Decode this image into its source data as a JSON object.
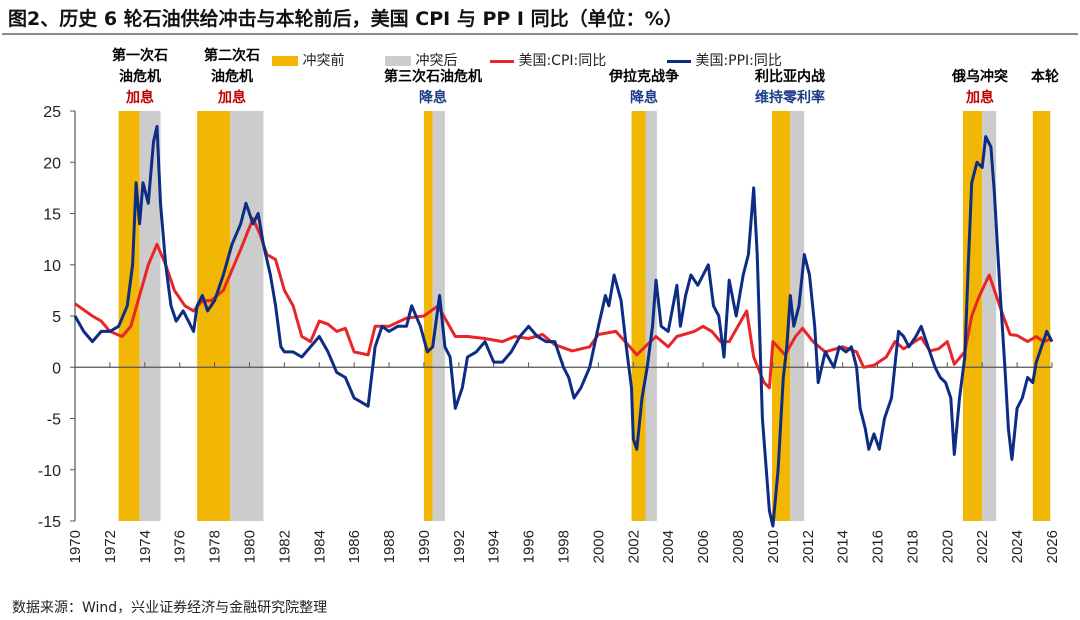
{
  "title": "图2、历史 6 轮石油供给冲击与本轮前后，美国 CPI 与 PP I 同比（单位：%）",
  "source": "数据来源：Wind，兴业证券经济与金融研究院整理",
  "colors": {
    "before": "#F2B705",
    "after": "#CCCCCC",
    "cpi": "#E8262A",
    "ppi": "#0D2C84",
    "hike": "#C00000",
    "cut": "#1F3C88"
  },
  "annotations": [
    {
      "name": "第一次石油危机",
      "line1": "第一次石",
      "line2": "油危机",
      "policy": "加息",
      "policy_type": "hike"
    },
    {
      "name": "第二次石油危机",
      "line1": "第二次石",
      "line2": "油危机",
      "policy": "加息",
      "policy_type": "hike"
    },
    {
      "name": "第三次石油危机",
      "line1": "",
      "line2": "第三次石油危机",
      "policy": "降息",
      "policy_type": "cut"
    },
    {
      "name": "伊拉克战争",
      "line1": "",
      "line2": "伊拉克战争",
      "policy": "降息",
      "policy_type": "cut"
    },
    {
      "name": "利比亚内战",
      "line1": "",
      "line2": "利比亚内战",
      "policy": "维持零利率",
      "policy_type": "cut"
    },
    {
      "name": "俄乌冲突",
      "line1": "",
      "line2": "俄乌冲突",
      "policy": "加息",
      "policy_type": "hike"
    },
    {
      "name": "本轮",
      "line1": "",
      "line2": "本轮",
      "policy": "",
      "policy_type": ""
    }
  ],
  "chart_data": {
    "type": "line",
    "title": "",
    "xlabel": "",
    "ylabel": "",
    "xlim": [
      1970,
      2026
    ],
    "ylim": [
      -15,
      25
    ],
    "yticks": [
      -15,
      -10,
      -5,
      0,
      5,
      10,
      15,
      20,
      25
    ],
    "xticks": [
      1970,
      1972,
      1974,
      1976,
      1978,
      1980,
      1982,
      1984,
      1986,
      1988,
      1990,
      1992,
      1994,
      1996,
      1998,
      2000,
      2002,
      2004,
      2006,
      2008,
      2010,
      2012,
      2014,
      2016,
      2018,
      2020,
      2022,
      2024,
      2026
    ],
    "grid": false,
    "legend_position": "top",
    "legend": [
      "冲突前",
      "冲突后",
      "美国:CPI:同比",
      "美国:PPI:同比"
    ],
    "shaded_periods": [
      {
        "before": [
          1972.5,
          1973.7
        ],
        "after": [
          1973.7,
          1974.9
        ]
      },
      {
        "before": [
          1977.0,
          1978.9
        ],
        "after": [
          1978.9,
          1980.8
        ]
      },
      {
        "before": [
          1990.0,
          1990.5
        ],
        "after": [
          1990.5,
          1991.2
        ]
      },
      {
        "before": [
          2001.9,
          2002.7
        ],
        "after": [
          2002.7,
          2003.35
        ]
      },
      {
        "before": [
          2009.95,
          2011.0
        ],
        "after": [
          2011.0,
          2011.8
        ]
      },
      {
        "before": [
          2020.9,
          2022.0
        ],
        "after": [
          2022.0,
          2022.8
        ]
      },
      {
        "before": [
          2024.9,
          2025.9
        ],
        "after": null
      }
    ],
    "series": [
      {
        "name": "美国:CPI:同比",
        "points": [
          [
            1970,
            6.2
          ],
          [
            1971,
            5
          ],
          [
            1971.5,
            4.5
          ],
          [
            1972,
            3.5
          ],
          [
            1972.7,
            3
          ],
          [
            1973.2,
            4
          ],
          [
            1973.7,
            7
          ],
          [
            1974.2,
            10
          ],
          [
            1974.7,
            12
          ],
          [
            1975.2,
            10
          ],
          [
            1975.7,
            7.5
          ],
          [
            1976.3,
            6
          ],
          [
            1976.8,
            5.5
          ],
          [
            1977.3,
            6.5
          ],
          [
            1977.8,
            6.5
          ],
          [
            1978.5,
            7.5
          ],
          [
            1979,
            9.5
          ],
          [
            1979.5,
            11.5
          ],
          [
            1980.2,
            14.5
          ],
          [
            1980.6,
            13
          ],
          [
            1981,
            11
          ],
          [
            1981.5,
            10.5
          ],
          [
            1982,
            7.5
          ],
          [
            1982.5,
            6
          ],
          [
            1983,
            3
          ],
          [
            1983.5,
            2.5
          ],
          [
            1984,
            4.5
          ],
          [
            1984.5,
            4.2
          ],
          [
            1985,
            3.5
          ],
          [
            1985.5,
            3.8
          ],
          [
            1986,
            1.5
          ],
          [
            1986.8,
            1.2
          ],
          [
            1987.2,
            4
          ],
          [
            1988,
            4
          ],
          [
            1989,
            4.8
          ],
          [
            1990,
            5
          ],
          [
            1990.8,
            6
          ],
          [
            1991.3,
            4.5
          ],
          [
            1991.8,
            3
          ],
          [
            1992.5,
            3
          ],
          [
            1993.5,
            2.8
          ],
          [
            1994.5,
            2.5
          ],
          [
            1995.2,
            3
          ],
          [
            1996,
            2.8
          ],
          [
            1996.8,
            3.2
          ],
          [
            1997.5,
            2.2
          ],
          [
            1998.5,
            1.6
          ],
          [
            1999.5,
            2
          ],
          [
            2000,
            3.2
          ],
          [
            2001,
            3.5
          ],
          [
            2001.8,
            2
          ],
          [
            2002.2,
            1.2
          ],
          [
            2002.8,
            2.2
          ],
          [
            2003.3,
            3
          ],
          [
            2004,
            2
          ],
          [
            2004.5,
            3
          ],
          [
            2005.5,
            3.5
          ],
          [
            2006,
            4
          ],
          [
            2006.5,
            3.5
          ],
          [
            2007,
            2.5
          ],
          [
            2007.5,
            2.5
          ],
          [
            2008.5,
            5.5
          ],
          [
            2008.9,
            1
          ],
          [
            2009.5,
            -1.5
          ],
          [
            2009.8,
            -2
          ],
          [
            2010,
            2.5
          ],
          [
            2010.7,
            1.2
          ],
          [
            2011.3,
            3
          ],
          [
            2011.7,
            3.8
          ],
          [
            2012.3,
            2.5
          ],
          [
            2013,
            1.5
          ],
          [
            2014,
            2
          ],
          [
            2014.8,
            1.5
          ],
          [
            2015.2,
            0
          ],
          [
            2015.8,
            0.2
          ],
          [
            2016.5,
            1
          ],
          [
            2017,
            2.5
          ],
          [
            2017.5,
            1.8
          ],
          [
            2018.5,
            2.9
          ],
          [
            2019,
            1.6
          ],
          [
            2019.5,
            1.8
          ],
          [
            2020,
            2.5
          ],
          [
            2020.4,
            0.3
          ],
          [
            2021,
            1.5
          ],
          [
            2021.4,
            5
          ],
          [
            2021.8,
            6.8
          ],
          [
            2022.4,
            9
          ],
          [
            2022.8,
            7
          ],
          [
            2023.2,
            5
          ],
          [
            2023.6,
            3.2
          ],
          [
            2024,
            3.1
          ],
          [
            2024.6,
            2.5
          ],
          [
            2025.1,
            3
          ],
          [
            2025.5,
            2.5
          ],
          [
            2026,
            2.8
          ]
        ]
      },
      {
        "name": "美国:PPI:同比",
        "points": [
          [
            1970,
            5
          ],
          [
            1970.5,
            3.5
          ],
          [
            1971,
            2.5
          ],
          [
            1971.5,
            3.5
          ],
          [
            1972,
            3.5
          ],
          [
            1972.5,
            4
          ],
          [
            1973,
            6
          ],
          [
            1973.3,
            10
          ],
          [
            1973.5,
            18
          ],
          [
            1973.7,
            14
          ],
          [
            1973.9,
            18
          ],
          [
            1974.2,
            16
          ],
          [
            1974.5,
            22
          ],
          [
            1974.7,
            23.5
          ],
          [
            1974.9,
            16
          ],
          [
            1975.2,
            10
          ],
          [
            1975.5,
            6
          ],
          [
            1975.8,
            4.5
          ],
          [
            1976.2,
            5.5
          ],
          [
            1976.5,
            4.5
          ],
          [
            1976.8,
            3.5
          ],
          [
            1977,
            6
          ],
          [
            1977.3,
            7
          ],
          [
            1977.6,
            5.5
          ],
          [
            1978,
            6.5
          ],
          [
            1978.5,
            9
          ],
          [
            1979,
            12
          ],
          [
            1979.5,
            14
          ],
          [
            1979.8,
            16
          ],
          [
            1980.2,
            14
          ],
          [
            1980.5,
            15
          ],
          [
            1980.8,
            12
          ],
          [
            1981.2,
            9
          ],
          [
            1981.5,
            6
          ],
          [
            1981.8,
            2
          ],
          [
            1982,
            1.5
          ],
          [
            1982.5,
            1.5
          ],
          [
            1983,
            1
          ],
          [
            1983.5,
            2
          ],
          [
            1984,
            3
          ],
          [
            1984.5,
            1.5
          ],
          [
            1985,
            -0.5
          ],
          [
            1985.5,
            -1
          ],
          [
            1986,
            -3
          ],
          [
            1986.5,
            -3.5
          ],
          [
            1986.8,
            -3.8
          ],
          [
            1987.2,
            2
          ],
          [
            1987.6,
            4
          ],
          [
            1988,
            3.5
          ],
          [
            1988.5,
            4
          ],
          [
            1989,
            4
          ],
          [
            1989.3,
            6
          ],
          [
            1989.8,
            4
          ],
          [
            1990.2,
            1.5
          ],
          [
            1990.5,
            2
          ],
          [
            1990.9,
            7
          ],
          [
            1991.2,
            2
          ],
          [
            1991.5,
            1
          ],
          [
            1991.8,
            -4
          ],
          [
            1992.2,
            -2
          ],
          [
            1992.5,
            1
          ],
          [
            1993,
            1.5
          ],
          [
            1993.5,
            2.5
          ],
          [
            1994,
            0.5
          ],
          [
            1994.5,
            0.5
          ],
          [
            1995,
            1.5
          ],
          [
            1995.5,
            3
          ],
          [
            1996,
            4
          ],
          [
            1996.5,
            3
          ],
          [
            1997,
            2.5
          ],
          [
            1997.5,
            2.5
          ],
          [
            1998,
            0
          ],
          [
            1998.3,
            -1
          ],
          [
            1998.6,
            -3
          ],
          [
            1999,
            -2
          ],
          [
            1999.5,
            0
          ],
          [
            2000,
            4
          ],
          [
            2000.4,
            7
          ],
          [
            2000.6,
            6
          ],
          [
            2000.9,
            9
          ],
          [
            2001.3,
            6.5
          ],
          [
            2001.6,
            2
          ],
          [
            2001.9,
            -2
          ],
          [
            2002.0,
            -7
          ],
          [
            2002.2,
            -8
          ],
          [
            2002.5,
            -3
          ],
          [
            2002.8,
            0
          ],
          [
            2003.1,
            4
          ],
          [
            2003.3,
            8.5
          ],
          [
            2003.6,
            4
          ],
          [
            2004,
            3.5
          ],
          [
            2004.5,
            8
          ],
          [
            2004.7,
            4
          ],
          [
            2005,
            7
          ],
          [
            2005.3,
            9
          ],
          [
            2005.7,
            8
          ],
          [
            2006,
            9
          ],
          [
            2006.3,
            10
          ],
          [
            2006.6,
            6
          ],
          [
            2006.9,
            5
          ],
          [
            2007.2,
            1
          ],
          [
            2007.5,
            8.5
          ],
          [
            2007.9,
            5
          ],
          [
            2008.3,
            9
          ],
          [
            2008.6,
            11
          ],
          [
            2008.9,
            17.5
          ],
          [
            2009.1,
            11
          ],
          [
            2009.4,
            -5
          ],
          [
            2009.8,
            -14
          ],
          [
            2010.0,
            -15.5
          ],
          [
            2010.3,
            -10
          ],
          [
            2010.6,
            -1
          ],
          [
            2010.8,
            2
          ],
          [
            2011.0,
            7
          ],
          [
            2011.2,
            4
          ],
          [
            2011.5,
            6
          ],
          [
            2011.8,
            11
          ],
          [
            2012.1,
            9
          ],
          [
            2012.4,
            4
          ],
          [
            2012.6,
            -1.5
          ],
          [
            2013.0,
            1.5
          ],
          [
            2013.5,
            0
          ],
          [
            2013.8,
            2
          ],
          [
            2014.2,
            1.5
          ],
          [
            2014.5,
            2
          ],
          [
            2014.8,
            0
          ],
          [
            2015,
            -4
          ],
          [
            2015.3,
            -6
          ],
          [
            2015.5,
            -8
          ],
          [
            2015.8,
            -6.5
          ],
          [
            2016.1,
            -8
          ],
          [
            2016.4,
            -5
          ],
          [
            2016.8,
            -3
          ],
          [
            2017.2,
            3.5
          ],
          [
            2017.5,
            3
          ],
          [
            2017.8,
            2
          ],
          [
            2018.2,
            3
          ],
          [
            2018.5,
            4
          ],
          [
            2018.9,
            2
          ],
          [
            2019.3,
            0
          ],
          [
            2019.6,
            -1
          ],
          [
            2019.9,
            -1.5
          ],
          [
            2020.2,
            -3
          ],
          [
            2020.4,
            -8.5
          ],
          [
            2020.7,
            -3
          ],
          [
            2021.0,
            1
          ],
          [
            2021.2,
            10
          ],
          [
            2021.4,
            18
          ],
          [
            2021.7,
            20
          ],
          [
            2022.0,
            19.5
          ],
          [
            2022.2,
            22.5
          ],
          [
            2022.5,
            21.5
          ],
          [
            2022.7,
            17
          ],
          [
            2023.0,
            8
          ],
          [
            2023.3,
            0
          ],
          [
            2023.5,
            -6
          ],
          [
            2023.7,
            -9
          ],
          [
            2024.0,
            -4
          ],
          [
            2024.3,
            -3
          ],
          [
            2024.6,
            -1
          ],
          [
            2024.9,
            -1.5
          ],
          [
            2025.1,
            0.5
          ],
          [
            2025.4,
            2
          ],
          [
            2025.7,
            3.5
          ],
          [
            2026,
            2.5
          ]
        ]
      }
    ]
  }
}
